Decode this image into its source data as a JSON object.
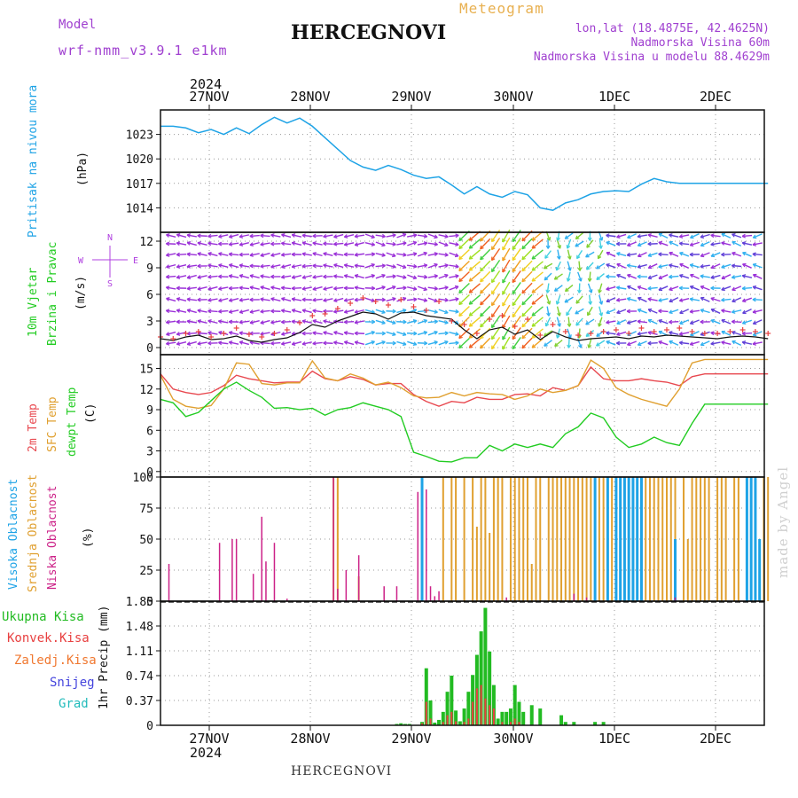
{
  "header": {
    "model_label": "Model",
    "model_name": "wrf-nmm_v3.9.1 e1km",
    "title": "HERCEGNOVI",
    "meteogram": "Meteogram",
    "lonlat": "lon,lat (18.4875E, 42.4625N)",
    "altitude": "Nadmorska Visina 60m",
    "model_altitude": "Nadmorska Visina u modelu 88.4629m",
    "year_top": "2024",
    "year_bottom": "2024",
    "footer": "HERCEGNOVI",
    "watermark": "made by Angel"
  },
  "colors": {
    "pressure": "#1ea3e6",
    "wind_label": "#22cc22",
    "temp2m": "#e8484f",
    "sfc": "#e0a030",
    "dewpt": "#22cc22",
    "visoka": "#1ea3e6",
    "srednja": "#e0a030",
    "niska": "#cc2288",
    "ukupna": "#22bb22",
    "konvek": "#e84040",
    "zaledj": "#f07830",
    "snijeg": "#4444dd",
    "grad": "#22bbbb",
    "compass": "#b040e0",
    "model": "#a040d0"
  },
  "chart_data": [
    {
      "type": "line",
      "id": "pressure",
      "ylabel": "Pritisak na nivou mora",
      "unit": "(hPa)",
      "yticks": [
        1014,
        1017,
        1020,
        1023
      ],
      "ylim": [
        1011,
        1026
      ],
      "x_dates": [
        "27NOV",
        "28NOV",
        "29NOV",
        "30NOV",
        "1DEC",
        "2DEC"
      ],
      "x": [
        0,
        3,
        6,
        9,
        12,
        15,
        18,
        21,
        24,
        27,
        30,
        33,
        36,
        39,
        42,
        45,
        48,
        51,
        54,
        57,
        60,
        63,
        66,
        69,
        72,
        75,
        78,
        81,
        84,
        87,
        90,
        93,
        96,
        99,
        102,
        105,
        108,
        111,
        114,
        117,
        120,
        123,
        126,
        129,
        132,
        135,
        138,
        141,
        144
      ],
      "series": [
        {
          "values": [
            1024.0,
            1024.0,
            1023.8,
            1023.2,
            1023.6,
            1023.0,
            1023.8,
            1023.1,
            1024.2,
            1025.1,
            1024.4,
            1025.0,
            1024.0,
            1022.6,
            1021.2,
            1019.8,
            1019.0,
            1018.6,
            1019.2,
            1018.7,
            1018.0,
            1017.6,
            1017.8,
            1016.8,
            1015.7,
            1016.6,
            1015.7,
            1015.3,
            1016.0,
            1015.6,
            1014.0,
            1013.7,
            1014.6,
            1015.0,
            1015.7,
            1016.0,
            1016.1,
            1016.0,
            1016.9,
            1017.6,
            1017.2,
            1017.0,
            1017.0,
            1017.0,
            1017.0,
            1017.0,
            1017.0,
            1017.0,
            1017.0
          ]
        }
      ]
    },
    {
      "type": "line",
      "id": "wind",
      "ylabel_1": "10m Vjetar",
      "ylabel_2": "Brzina i Pravac",
      "unit": "(m/s)",
      "compass": {
        "n": "N",
        "s": "S",
        "w": "W",
        "e": "E"
      },
      "yticks": [
        0,
        3,
        6,
        9,
        12
      ],
      "ylim": [
        -0.8,
        13
      ],
      "x": [
        0,
        3,
        6,
        9,
        12,
        15,
        18,
        21,
        24,
        27,
        30,
        33,
        36,
        39,
        42,
        45,
        48,
        51,
        54,
        57,
        60,
        63,
        66,
        69,
        72,
        75,
        78,
        81,
        84,
        87,
        90,
        93,
        96,
        99,
        102,
        105,
        108,
        111,
        114,
        117,
        120,
        123,
        126,
        129,
        132,
        135,
        138,
        141,
        144
      ],
      "series": [
        {
          "values": [
            1.0,
            0.8,
            1.2,
            1.4,
            0.9,
            1.0,
            1.3,
            0.8,
            0.6,
            0.9,
            1.1,
            1.7,
            2.6,
            2.3,
            3.0,
            3.5,
            4.0,
            3.8,
            3.2,
            3.9,
            4.0,
            3.6,
            3.4,
            3.2,
            2.0,
            1.0,
            2.0,
            2.3,
            1.5,
            2.0,
            0.9,
            1.8,
            1.2,
            0.8,
            1.0,
            1.1,
            1.2,
            1.0,
            1.3,
            1.2,
            1.4,
            1.3,
            1.2,
            1.1,
            1.0,
            1.2,
            1.3,
            1.2,
            1.0
          ]
        },
        {
          "values": [
            1.2,
            1.0,
            1.6,
            1.8,
            1.2,
            1.6,
            2.2,
            1.5,
            1.2,
            1.6,
            2.0,
            2.8,
            3.6,
            3.8,
            4.4,
            5.0,
            5.6,
            5.2,
            4.8,
            5.4,
            4.6,
            4.2,
            5.2,
            3.0,
            2.6,
            1.6,
            3.2,
            3.6,
            2.4,
            3.2,
            1.4,
            2.6,
            1.8,
            1.4,
            1.6,
            1.8,
            2.0,
            1.6,
            2.2,
            1.8,
            2.0,
            2.2,
            1.8,
            1.6,
            1.6,
            1.8,
            2.0,
            1.8,
            1.6
          ]
        }
      ]
    },
    {
      "type": "line",
      "id": "temperature",
      "ylabel_1": "2m Temp",
      "ylabel_2": "SFC Temp",
      "ylabel_3": "dewpt Temp",
      "unit": "(C)",
      "yticks": [
        0,
        3,
        6,
        9,
        12,
        15
      ],
      "ylim": [
        -0.8,
        17
      ],
      "x": [
        0,
        3,
        6,
        9,
        12,
        15,
        18,
        21,
        24,
        27,
        30,
        33,
        36,
        39,
        42,
        45,
        48,
        51,
        54,
        57,
        60,
        63,
        66,
        69,
        72,
        75,
        78,
        81,
        84,
        87,
        90,
        93,
        96,
        99,
        102,
        105,
        108,
        111,
        114,
        117,
        120,
        123,
        126,
        129,
        132,
        135,
        138,
        141,
        144
      ],
      "series": [
        {
          "values": [
            14.2,
            12.0,
            11.5,
            11.2,
            11.5,
            12.5,
            14.0,
            13.5,
            13.2,
            12.9,
            13.0,
            13.0,
            14.6,
            13.5,
            13.2,
            13.8,
            13.4,
            12.6,
            12.8,
            12.8,
            11.2,
            10.2,
            9.5,
            10.2,
            10.0,
            10.8,
            10.5,
            10.5,
            11.2,
            11.3,
            11.0,
            12.2,
            11.8,
            12.5,
            15.2,
            13.5,
            13.2,
            13.2,
            13.5,
            13.2,
            13.0,
            12.5,
            13.8,
            14.2,
            14.2,
            14.2,
            14.2,
            14.2,
            14.2
          ]
        },
        {
          "values": [
            14.0,
            10.5,
            9.5,
            9.2,
            9.6,
            12.0,
            15.8,
            15.6,
            12.8,
            12.6,
            12.9,
            12.9,
            16.1,
            13.6,
            13.2,
            14.2,
            13.6,
            12.6,
            13.0,
            12.2,
            11.0,
            10.7,
            10.8,
            11.5,
            11.0,
            11.5,
            11.3,
            11.2,
            10.5,
            11.0,
            12.0,
            11.5,
            11.8,
            12.5,
            16.2,
            15.0,
            12.2,
            11.2,
            10.5,
            10.0,
            9.5,
            12.0,
            15.8,
            16.3,
            16.3,
            16.3,
            16.3,
            16.3,
            16.3
          ]
        },
        {
          "values": [
            10.5,
            10.0,
            8.0,
            8.6,
            10.3,
            12.0,
            13.0,
            11.8,
            10.8,
            9.2,
            9.3,
            9.0,
            9.2,
            8.2,
            9.0,
            9.3,
            10.0,
            9.5,
            9.0,
            8.0,
            2.8,
            2.2,
            1.5,
            1.4,
            2.0,
            2.0,
            3.8,
            3.0,
            4.0,
            3.5,
            4.0,
            3.5,
            5.5,
            6.5,
            8.5,
            7.8,
            5.0,
            3.5,
            4.0,
            5.0,
            4.2,
            3.8,
            7.0,
            9.8,
            9.8,
            9.8,
            9.8,
            9.8,
            9.8
          ]
        }
      ]
    },
    {
      "type": "bar",
      "id": "clouds",
      "ylabel_1": "Visoka Oblacnost",
      "ylabel_2": "Srednja Oblacnost",
      "ylabel_3": "Niska Oblacnost",
      "unit": "(%)",
      "yticks": [
        0,
        25,
        50,
        75,
        100
      ],
      "ylim": [
        0,
        100
      ],
      "niska": {
        "x": [
          2,
          14,
          17,
          18,
          22,
          24,
          25,
          27,
          30,
          41,
          42,
          44,
          47,
          53,
          56,
          61,
          63,
          64,
          65,
          66,
          82,
          98,
          101,
          122
        ],
        "values": [
          30,
          47,
          50,
          50,
          22,
          68,
          32,
          47,
          2,
          100,
          10,
          25,
          37,
          12,
          12,
          88,
          90,
          12,
          4,
          8,
          3,
          6,
          3,
          3
        ]
      },
      "srednja": {
        "x": [
          41,
          42,
          47,
          67,
          69,
          70,
          72,
          74,
          75,
          76,
          77,
          78,
          79,
          80,
          81,
          83,
          84,
          85,
          86,
          87,
          88,
          89,
          90,
          92,
          93,
          94,
          95,
          96,
          97,
          98,
          99,
          100,
          101,
          102,
          103,
          104,
          105,
          106,
          107,
          108,
          110,
          111,
          112,
          114,
          115,
          116,
          117,
          118,
          119,
          120,
          121,
          122,
          124,
          125,
          126,
          127,
          128,
          129,
          130,
          132,
          133,
          134,
          136,
          137,
          139,
          140,
          141,
          142,
          143,
          144
        ],
        "values": [
          100,
          100,
          20,
          100,
          100,
          100,
          100,
          100,
          60,
          100,
          100,
          55,
          100,
          100,
          100,
          100,
          100,
          100,
          100,
          100,
          30,
          100,
          100,
          100,
          100,
          100,
          100,
          100,
          100,
          100,
          100,
          100,
          100,
          100,
          100,
          100,
          100,
          100,
          100,
          100,
          100,
          100,
          100,
          100,
          100,
          100,
          100,
          100,
          100,
          100,
          100,
          100,
          100,
          50,
          100,
          100,
          100,
          100,
          100,
          100,
          100,
          100,
          100,
          100,
          100,
          100,
          100,
          48,
          100,
          100
        ]
      },
      "visoka": {
        "x": [
          62,
          103,
          106,
          108,
          109,
          110,
          111,
          112,
          113,
          114,
          122,
          139,
          140,
          141,
          142
        ],
        "values": [
          100,
          100,
          100,
          100,
          100,
          100,
          100,
          100,
          100,
          100,
          50,
          100,
          100,
          100,
          50
        ]
      }
    },
    {
      "type": "bar",
      "id": "precipitation",
      "legend": [
        "Ukupna Kisa",
        "Konvek.Kisa",
        "Zaledj.Kisa",
        "Snijeg",
        "Grad"
      ],
      "unit": "1hr Precip (mm)",
      "yticks": [
        "0",
        "0.37",
        "0.74",
        "1.11",
        "1.48",
        "1.85"
      ],
      "ylim": [
        0,
        1.85
      ],
      "x_dates": [
        "27NOV",
        "28NOV",
        "29NOV",
        "30NOV",
        "1DEC",
        "2DEC"
      ],
      "x": [
        56,
        57,
        58,
        59,
        62,
        63,
        64,
        65,
        66,
        67,
        68,
        69,
        70,
        71,
        72,
        73,
        74,
        75,
        76,
        77,
        78,
        79,
        80,
        81,
        82,
        83,
        84,
        85,
        86,
        88,
        90,
        95,
        96,
        98,
        103,
        105
      ],
      "ukupna": [
        0.02,
        0.03,
        0.02,
        0.02,
        0.05,
        0.85,
        0.37,
        0.04,
        0.08,
        0.2,
        0.5,
        0.74,
        0.22,
        0.06,
        0.25,
        0.5,
        0.75,
        1.05,
        1.4,
        1.75,
        1.1,
        0.6,
        0.1,
        0.2,
        0.2,
        0.25,
        0.6,
        0.35,
        0.2,
        0.3,
        0.25,
        0.15,
        0.05,
        0.05,
        0.05,
        0.05
      ],
      "konvek": [
        0,
        0,
        0,
        0,
        0.03,
        0.35,
        0.1,
        0,
        0,
        0.05,
        0.15,
        0.2,
        0.06,
        0,
        0.05,
        0.1,
        0.35,
        0.55,
        0.6,
        0.4,
        0.3,
        0.25,
        0,
        0.05,
        0,
        0.05,
        0.1,
        0.05,
        0,
        0,
        0,
        0,
        0,
        0,
        0,
        0
      ]
    }
  ]
}
